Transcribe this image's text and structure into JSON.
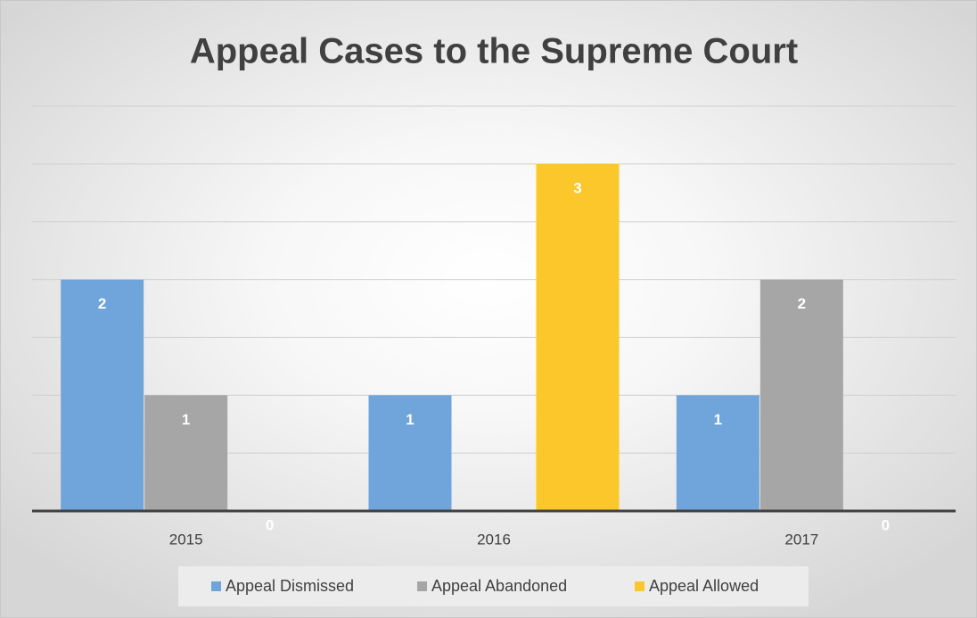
{
  "chart_data": {
    "type": "bar",
    "title": "Appeal Cases to the Supreme Court",
    "categories": [
      "2015",
      "2016",
      "2017"
    ],
    "series": [
      {
        "name": "Appeal Dismissed",
        "color": "#6fa5da",
        "values": [
          2,
          1,
          1
        ]
      },
      {
        "name": "Appeal Abandoned",
        "color": "#a6a6a6",
        "values": [
          1,
          null,
          2
        ]
      },
      {
        "name": "Appeal Allowed",
        "color": "#fcc72a",
        "values": [
          0,
          3,
          0
        ]
      }
    ],
    "ylim": [
      0,
      3.5
    ],
    "yticks": [
      0,
      0.5,
      1,
      1.5,
      2,
      2.5,
      3,
      3.5
    ],
    "grid": true,
    "legend": "bottom"
  }
}
